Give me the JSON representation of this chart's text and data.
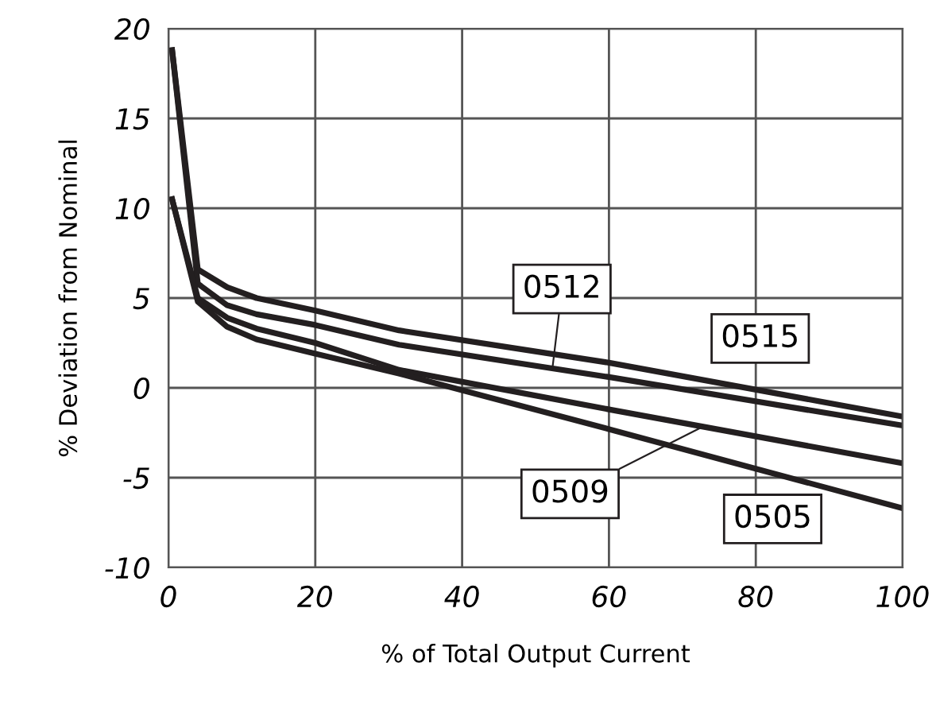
{
  "chart_data": {
    "type": "line",
    "xlabel": "% of Total Output Current",
    "ylabel": "% Deviation from Nominal",
    "x": [
      0.5,
      4,
      8,
      12,
      20,
      31.4,
      60,
      100
    ],
    "series": [
      {
        "name": "0515",
        "color": "#231f20",
        "values": [
          18.8,
          6.6,
          5.6,
          5.0,
          4.3,
          3.2,
          1.4,
          -1.6
        ]
      },
      {
        "name": "0512",
        "color": "#231f20",
        "values": [
          18.8,
          5.8,
          4.6,
          4.1,
          3.5,
          2.4,
          0.6,
          -2.1
        ]
      },
      {
        "name": "0509",
        "color": "#231f20",
        "values": [
          10.5,
          5.0,
          3.9,
          3.3,
          2.5,
          1.0,
          -1.2,
          -4.2
        ]
      },
      {
        "name": "0505",
        "color": "#231f20",
        "values": [
          10.5,
          4.8,
          3.4,
          2.7,
          1.9,
          0.8,
          -2.3,
          -6.7
        ]
      }
    ],
    "xlim": [
      0,
      100
    ],
    "xticks": [
      0,
      20,
      40,
      60,
      80,
      100
    ],
    "ylim": [
      -10,
      20
    ],
    "yticks": [
      -10,
      -5,
      0,
      5,
      10,
      15,
      20
    ],
    "grid": true,
    "marker": "none",
    "line_style": "solid",
    "legend": false
  }
}
